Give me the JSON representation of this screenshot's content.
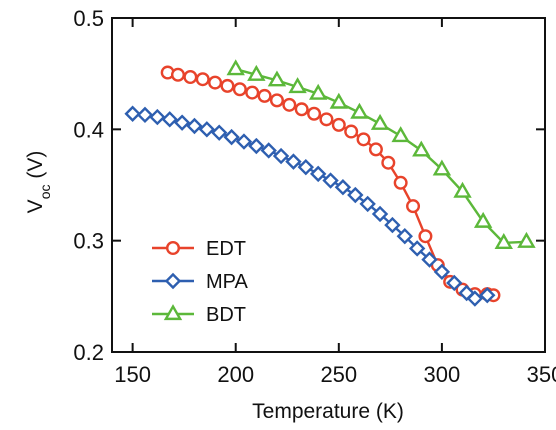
{
  "chart_data": {
    "type": "line",
    "xlabel": "Temperature (K)",
    "ylabel_main": "V",
    "ylabel_sub": "oc",
    "ylabel_unit": " (V)",
    "xlim": [
      140,
      350
    ],
    "ylim": [
      0.2,
      0.5
    ],
    "xticks": [
      150,
      200,
      250,
      300,
      350
    ],
    "yticks": [
      0.2,
      0.3,
      0.4,
      0.5
    ],
    "legend_position": "bottom-left",
    "series": [
      {
        "name": "EDT",
        "color": "#e8432b",
        "marker": "circle",
        "x": [
          167,
          172,
          178,
          184,
          190,
          196,
          202,
          208,
          214,
          220,
          226,
          232,
          238,
          244,
          250,
          256,
          262,
          268,
          274,
          280,
          286,
          292,
          298,
          304,
          310,
          316,
          322,
          325
        ],
        "y": [
          0.451,
          0.449,
          0.447,
          0.445,
          0.442,
          0.439,
          0.436,
          0.433,
          0.43,
          0.426,
          0.422,
          0.418,
          0.414,
          0.409,
          0.404,
          0.398,
          0.391,
          0.382,
          0.37,
          0.352,
          0.331,
          0.304,
          0.278,
          0.263,
          0.256,
          0.252,
          0.252,
          0.251
        ]
      },
      {
        "name": "MPA",
        "color": "#2e5fb0",
        "marker": "diamond",
        "x": [
          150,
          156,
          162,
          168,
          174,
          180,
          186,
          192,
          198,
          204,
          210,
          216,
          222,
          228,
          234,
          240,
          246,
          252,
          258,
          264,
          270,
          276,
          282,
          288,
          294,
          300,
          306,
          312,
          316,
          322
        ],
        "y": [
          0.414,
          0.413,
          0.411,
          0.409,
          0.406,
          0.403,
          0.4,
          0.397,
          0.393,
          0.389,
          0.385,
          0.381,
          0.376,
          0.371,
          0.366,
          0.36,
          0.354,
          0.348,
          0.341,
          0.333,
          0.324,
          0.314,
          0.304,
          0.293,
          0.283,
          0.272,
          0.262,
          0.253,
          0.248,
          0.251
        ]
      },
      {
        "name": "BDT",
        "color": "#5cb83a",
        "marker": "triangle",
        "x": [
          200,
          210,
          220,
          230,
          240,
          250,
          260,
          270,
          280,
          290,
          300,
          310,
          320,
          330,
          341
        ],
        "y": [
          0.454,
          0.449,
          0.444,
          0.438,
          0.432,
          0.424,
          0.415,
          0.405,
          0.394,
          0.381,
          0.364,
          0.344,
          0.317,
          0.298,
          0.299
        ]
      }
    ]
  }
}
